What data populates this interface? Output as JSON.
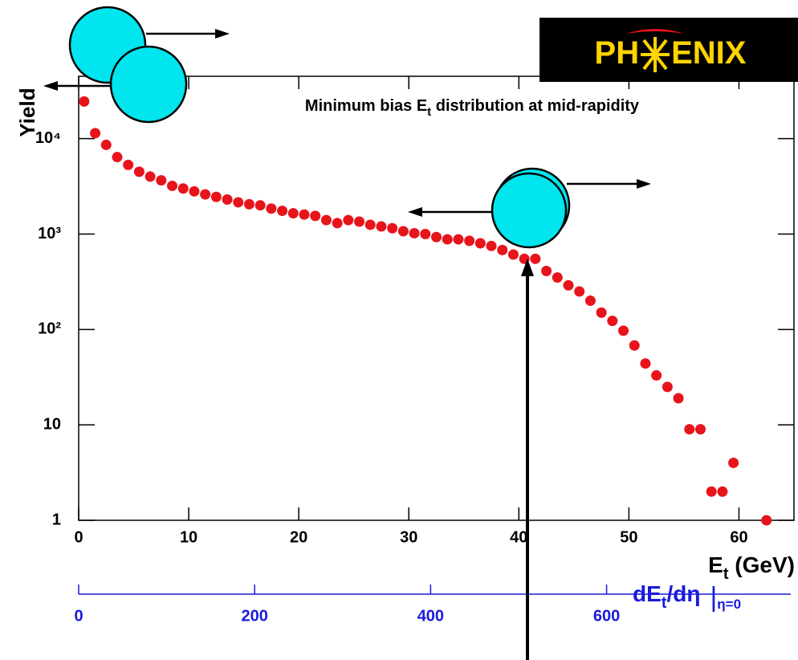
{
  "chart_data": {
    "type": "scatter",
    "title": [
      "Minimum bias E",
      "t",
      " distribution at mid-rapidity"
    ],
    "x_label": [
      "E",
      "t",
      " (GeV)"
    ],
    "y_label": "Yield",
    "logo": [
      "PH",
      "ENIX"
    ],
    "x": [
      0.5,
      1.5,
      2.5,
      3.5,
      4.5,
      5.5,
      6.5,
      7.5,
      8.5,
      9.5,
      10.5,
      11.5,
      12.5,
      13.5,
      14.5,
      15.5,
      16.5,
      17.5,
      18.5,
      19.5,
      20.5,
      21.5,
      22.5,
      23.5,
      24.5,
      25.5,
      26.5,
      27.5,
      28.5,
      29.5,
      30.5,
      31.5,
      32.5,
      33.5,
      34.5,
      35.5,
      36.5,
      37.5,
      38.5,
      39.5,
      40.5,
      41.5,
      42.5,
      43.5,
      44.5,
      45.5,
      46.5,
      47.5,
      48.5,
      49.5,
      50.5,
      51.5,
      52.5,
      53.5,
      54.5,
      55.5,
      56.5,
      57.5,
      58.5,
      59.5,
      62.5
    ],
    "series": [
      {
        "name": "Yield",
        "color": "#e8141b",
        "values": [
          24500,
          11400,
          8600,
          6400,
          5300,
          4500,
          4000,
          3650,
          3200,
          3000,
          2800,
          2600,
          2450,
          2300,
          2150,
          2050,
          2000,
          1850,
          1750,
          1650,
          1600,
          1550,
          1400,
          1300,
          1400,
          1350,
          1250,
          1200,
          1150,
          1070,
          1020,
          1000,
          930,
          880,
          880,
          850,
          800,
          750,
          680,
          610,
          550,
          550,
          410,
          350,
          290,
          250,
          200,
          150,
          123,
          97,
          68,
          44,
          33,
          25,
          19,
          9,
          9,
          2,
          2,
          4,
          1
        ]
      }
    ],
    "xlim": [
      0,
      65
    ],
    "xticks": [
      0,
      10,
      20,
      30,
      40,
      50,
      60
    ],
    "ylim": [
      1,
      45000
    ],
    "log_y": true,
    "yticks": [
      1,
      10,
      {
        "value": 100,
        "label": "10²"
      },
      {
        "value": 1000,
        "label": "10³"
      },
      {
        "value": 10000,
        "label": "10⁴"
      }
    ],
    "x2_label": [
      "dE",
      "t",
      "/dη",
      "|",
      "η=0"
    ],
    "x2lim": [
      0,
      813
    ],
    "x2ticks": [
      0,
      200,
      400,
      600
    ],
    "x2_color": "#1a1adc"
  }
}
